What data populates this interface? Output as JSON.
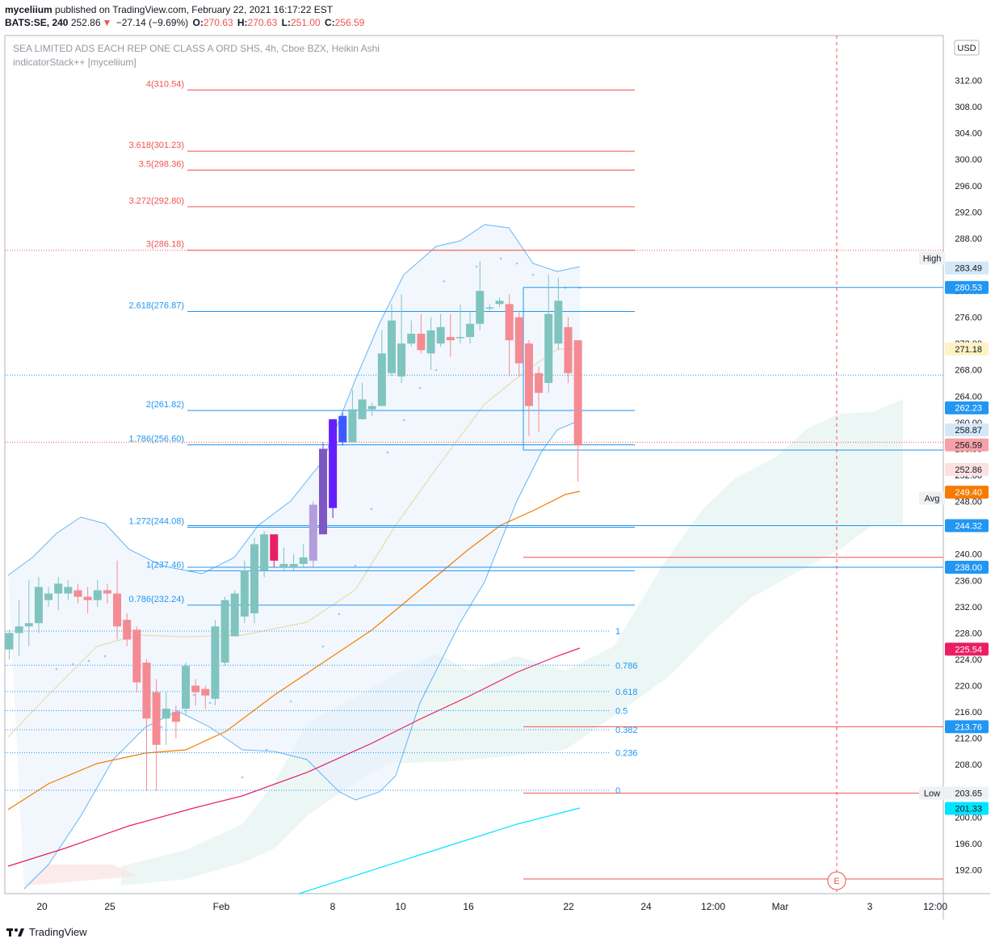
{
  "header": {
    "line1_user": "myceliium",
    "line1_rest": " published on TradingView.com, February 22, 2021 16:17:22 EST",
    "symbol": "BATS:SE, 240",
    "last": "252.86",
    "change": "−27.14 (−9.69%)",
    "o_label": "O:",
    "o_val": "270.63",
    "h_label": "H:",
    "h_val": "270.63",
    "l_label": "L:",
    "l_val": "251.00",
    "c_label": "C:",
    "c_val": "256.59"
  },
  "legend": {
    "title": "SEA LIMITED ADS EACH REP ONE CLASS A ORD SHS, 4h, Cboe BZX, Heikin Ashi",
    "indicator": "indicatorStack++ [myceliium]"
  },
  "footer": {
    "brand": "TradingView"
  },
  "chart_data": {
    "type": "candlestick",
    "style": "Heikin Ashi",
    "currency": "USD",
    "ylim": [
      188,
      316
    ],
    "y_ticks": [
      192,
      196,
      200,
      204,
      208,
      212,
      216,
      220,
      224,
      228,
      232,
      236,
      240,
      244,
      248,
      252,
      256,
      260,
      264,
      268,
      272,
      276,
      280,
      284,
      288,
      292,
      296,
      300,
      304,
      308,
      312
    ],
    "x_ticks": [
      "20",
      "25",
      "Feb",
      "8",
      "10",
      "16",
      "22",
      "24",
      "12:00",
      "Mar",
      "3",
      "12:00"
    ],
    "fib_extensions": [
      {
        "label": "4(310.54)",
        "value": 310.54
      },
      {
        "label": "3.618(301.23)",
        "value": 301.23
      },
      {
        "label": "3.5(298.36)",
        "value": 298.36
      },
      {
        "label": "3.272(292.80)",
        "value": 292.8
      },
      {
        "label": "3(286.18)",
        "value": 286.18
      },
      {
        "label": "2.618(276.87)",
        "value": 276.87
      },
      {
        "label": "2(261.82)",
        "value": 261.82
      },
      {
        "label": "1.786(256.60)",
        "value": 256.6
      },
      {
        "label": "1.272(244.08)",
        "value": 244.08
      },
      {
        "label": "1(237.46)",
        "value": 237.46
      },
      {
        "label": "0.786(232.24)",
        "value": 232.24
      }
    ],
    "fib_retracement": [
      {
        "label": "1",
        "value": 228.3
      },
      {
        "label": "0.786",
        "value": 223.1
      },
      {
        "label": "0.618",
        "value": 219.1
      },
      {
        "label": "0.5",
        "value": 216.2
      },
      {
        "label": "0.382",
        "value": 213.3
      },
      {
        "label": "0.236",
        "value": 209.8
      },
      {
        "label": "0",
        "value": 204.1
      }
    ],
    "price_labels": [
      {
        "text": "283.49",
        "value": 283.49,
        "bg": "#d4e8f8",
        "fg": "#131722"
      },
      {
        "text": "280.53",
        "value": 280.53,
        "bg": "#2196f3",
        "fg": "#ffffff"
      },
      {
        "text": "271.18",
        "value": 271.18,
        "bg": "#fff3c4",
        "fg": "#131722"
      },
      {
        "text": "262.23",
        "value": 262.23,
        "bg": "#2196f3",
        "fg": "#ffffff"
      },
      {
        "text": "258.87",
        "value": 258.87,
        "bg": "#d4e8f8",
        "fg": "#131722"
      },
      {
        "text": "256.59",
        "value": 256.59,
        "bg": "#f7a1a6",
        "fg": "#131722"
      },
      {
        "text": "252.86",
        "value": 252.86,
        "bg": "#fde0e0",
        "fg": "#131722"
      },
      {
        "text": "249.40",
        "value": 249.4,
        "bg": "#f57c00",
        "fg": "#ffffff"
      },
      {
        "text": "244.32",
        "value": 244.32,
        "bg": "#2196f3",
        "fg": "#ffffff"
      },
      {
        "text": "238.00",
        "value": 238.0,
        "bg": "#2196f3",
        "fg": "#ffffff"
      },
      {
        "text": "225.54",
        "value": 225.54,
        "bg": "#e91e63",
        "fg": "#ffffff"
      },
      {
        "text": "213.76",
        "value": 213.76,
        "bg": "#2196f3",
        "fg": "#ffffff"
      },
      {
        "text": "203.65",
        "value": 203.65,
        "bg": "#eef0f3",
        "fg": "#131722"
      },
      {
        "text": "201.33",
        "value": 201.33,
        "bg": "#00e5ff",
        "fg": "#131722"
      }
    ],
    "tags": [
      {
        "text": "High",
        "value": 284.99
      },
      {
        "text": "Avg",
        "value": 248.5
      },
      {
        "text": "Low",
        "value": 203.65
      }
    ],
    "earnings_marker": "E",
    "candles": [
      {
        "o": 225.5,
        "h": 228.5,
        "l": 224.0,
        "c": 228.0
      },
      {
        "o": 228.0,
        "h": 233.0,
        "l": 224.5,
        "c": 229.0
      },
      {
        "o": 229.0,
        "h": 236.0,
        "l": 226.0,
        "c": 229.5
      },
      {
        "o": 229.5,
        "h": 236.5,
        "l": 228.0,
        "c": 235.0
      },
      {
        "o": 233.0,
        "h": 235.0,
        "l": 232.0,
        "c": 234.0
      },
      {
        "o": 234.0,
        "h": 236.5,
        "l": 231.5,
        "c": 235.5
      },
      {
        "o": 234.0,
        "h": 236.0,
        "l": 233.0,
        "c": 235.0
      },
      {
        "o": 234.5,
        "h": 235.5,
        "l": 232.5,
        "c": 233.5
      },
      {
        "o": 233.5,
        "h": 235.0,
        "l": 231.0,
        "c": 233.0
      },
      {
        "o": 233.0,
        "h": 236.0,
        "l": 232.0,
        "c": 234.5
      },
      {
        "o": 234.5,
        "h": 235.5,
        "l": 232.5,
        "c": 234.0
      },
      {
        "o": 234.0,
        "h": 239.0,
        "l": 227.0,
        "c": 229.0
      },
      {
        "o": 230.0,
        "h": 231.0,
        "l": 226.0,
        "c": 227.0
      },
      {
        "o": 228.5,
        "h": 229.0,
        "l": 219.0,
        "c": 220.5
      },
      {
        "o": 223.5,
        "h": 224.0,
        "l": 204.0,
        "c": 215.0
      },
      {
        "o": 219.0,
        "h": 221.0,
        "l": 204.0,
        "c": 211.0
      },
      {
        "o": 215.0,
        "h": 219.0,
        "l": 211.0,
        "c": 216.5
      },
      {
        "o": 216.0,
        "h": 217.0,
        "l": 212.0,
        "c": 214.5
      },
      {
        "o": 216.5,
        "h": 223.5,
        "l": 215.5,
        "c": 223.0
      },
      {
        "o": 220.0,
        "h": 221.0,
        "l": 217.0,
        "c": 219.0
      },
      {
        "o": 219.5,
        "h": 220.0,
        "l": 216.5,
        "c": 218.5
      },
      {
        "o": 218.0,
        "h": 230.0,
        "l": 217.0,
        "c": 229.0
      },
      {
        "o": 223.5,
        "h": 233.5,
        "l": 223.0,
        "c": 233.0
      },
      {
        "o": 227.5,
        "h": 234.5,
        "l": 227.5,
        "c": 234.0
      },
      {
        "o": 230.5,
        "h": 239.0,
        "l": 229.5,
        "c": 237.5
      },
      {
        "o": 231.0,
        "h": 242.5,
        "l": 229.5,
        "c": 241.5
      },
      {
        "o": 237.5,
        "h": 243.5,
        "l": 236.5,
        "c": 243.0
      },
      {
        "o": 243.0,
        "h": 243.0,
        "l": 238.0,
        "c": 239.0
      },
      {
        "o": 238.0,
        "h": 241.0,
        "l": 237.5,
        "c": 238.5
      },
      {
        "o": 238.0,
        "h": 240.0,
        "l": 237.5,
        "c": 238.5
      },
      {
        "o": 238.5,
        "h": 241.5,
        "l": 238.0,
        "c": 239.5
      },
      {
        "o": 239.0,
        "h": 248.0,
        "l": 238.0,
        "c": 247.5
      },
      {
        "o": 243.0,
        "h": 257.0,
        "l": 243.0,
        "c": 256.0
      },
      {
        "o": 247.0,
        "h": 260.5,
        "l": 245.5,
        "c": 260.5
      },
      {
        "o": 257.0,
        "h": 261.5,
        "l": 256.5,
        "c": 261.0
      },
      {
        "o": 257.0,
        "h": 265.0,
        "l": 257.0,
        "c": 262.0
      },
      {
        "o": 260.5,
        "h": 266.0,
        "l": 260.5,
        "c": 263.5
      },
      {
        "o": 262.0,
        "h": 263.0,
        "l": 261.0,
        "c": 262.5
      },
      {
        "o": 262.5,
        "h": 274.0,
        "l": 262.5,
        "c": 270.5
      },
      {
        "o": 267.5,
        "h": 278.0,
        "l": 267.0,
        "c": 275.5
      },
      {
        "o": 267.0,
        "h": 279.5,
        "l": 266.0,
        "c": 272.0
      },
      {
        "o": 272.0,
        "h": 275.5,
        "l": 271.5,
        "c": 273.5
      },
      {
        "o": 273.5,
        "h": 276.5,
        "l": 270.5,
        "c": 271.0
      },
      {
        "o": 270.5,
        "h": 276.0,
        "l": 268.0,
        "c": 274.0
      },
      {
        "o": 272.0,
        "h": 276.5,
        "l": 271.5,
        "c": 274.5
      },
      {
        "o": 273.0,
        "h": 276.5,
        "l": 270.0,
        "c": 272.5
      },
      {
        "o": 273.0,
        "h": 278.0,
        "l": 272.0,
        "c": 273.0
      },
      {
        "o": 273.0,
        "h": 277.0,
        "l": 272.0,
        "c": 275.0
      },
      {
        "o": 275.0,
        "h": 284.5,
        "l": 274.0,
        "c": 280.0
      },
      {
        "o": 277.5,
        "h": 278.0,
        "l": 277.0,
        "c": 277.5
      },
      {
        "o": 278.0,
        "h": 279.0,
        "l": 277.5,
        "c": 278.5
      },
      {
        "o": 278.0,
        "h": 279.5,
        "l": 267.0,
        "c": 272.5
      },
      {
        "o": 276.0,
        "h": 277.0,
        "l": 267.0,
        "c": 269.0
      },
      {
        "o": 272.0,
        "h": 272.5,
        "l": 258.0,
        "c": 262.5
      },
      {
        "o": 267.5,
        "h": 268.5,
        "l": 258.5,
        "c": 264.5
      },
      {
        "o": 266.0,
        "h": 282.5,
        "l": 264.5,
        "c": 276.5
      },
      {
        "o": 272.0,
        "h": 282.0,
        "l": 271.0,
        "c": 278.5
      },
      {
        "o": 274.5,
        "h": 276.0,
        "l": 266.0,
        "c": 267.5
      },
      {
        "o": 272.5,
        "h": 272.5,
        "l": 251.0,
        "c": 256.5
      }
    ]
  }
}
